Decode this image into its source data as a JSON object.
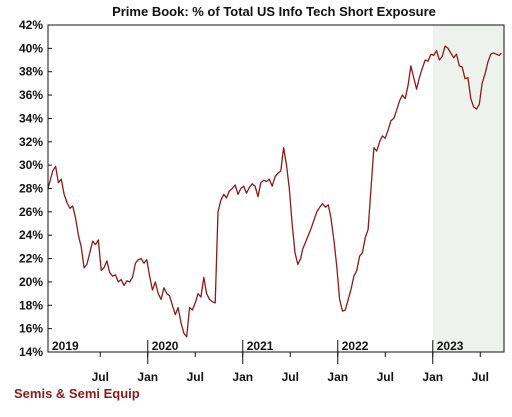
{
  "chart_data": {
    "type": "line",
    "title": "Prime Book: % of Total US Info Tech Short Exposure",
    "xlabel": "",
    "ylabel": "",
    "ylim": [
      14,
      42
    ],
    "y_ticks": [
      "14%",
      "16%",
      "18%",
      "20%",
      "22%",
      "24%",
      "26%",
      "28%",
      "30%",
      "32%",
      "34%",
      "36%",
      "38%",
      "40%",
      "42%"
    ],
    "x_month_ticks": [
      {
        "t": 2019.5,
        "label": "Jul"
      },
      {
        "t": 2020.0,
        "label": "Jan"
      },
      {
        "t": 2020.5,
        "label": "Jul"
      },
      {
        "t": 2021.0,
        "label": "Jan"
      },
      {
        "t": 2021.5,
        "label": "Jul"
      },
      {
        "t": 2022.0,
        "label": "Jan"
      },
      {
        "t": 2022.5,
        "label": "Jul"
      },
      {
        "t": 2023.0,
        "label": "Jan"
      },
      {
        "t": 2023.5,
        "label": "Jul"
      }
    ],
    "year_labels": [
      {
        "t": 2019.0,
        "label": "2019"
      },
      {
        "t": 2020.0,
        "label": "2020"
      },
      {
        "t": 2021.0,
        "label": "2021"
      },
      {
        "t": 2022.0,
        "label": "2022"
      },
      {
        "t": 2023.0,
        "label": "2023"
      }
    ],
    "xrange": [
      2018.95,
      2023.75
    ],
    "shaded_region": [
      2023.0,
      2023.75
    ],
    "grid": false,
    "line_color": "#8b1a1a",
    "shade_color": "#eef2ec",
    "series": [
      {
        "name": "",
        "x": [
          2018.95,
          2019.0,
          2019.03,
          2019.06,
          2019.09,
          2019.12,
          2019.15,
          2019.18,
          2019.21,
          2019.24,
          2019.27,
          2019.3,
          2019.33,
          2019.36,
          2019.39,
          2019.42,
          2019.45,
          2019.48,
          2019.51,
          2019.54,
          2019.57,
          2019.6,
          2019.63,
          2019.66,
          2019.69,
          2019.72,
          2019.75,
          2019.78,
          2019.81,
          2019.84,
          2019.87,
          2019.9,
          2019.93,
          2019.96,
          2019.99,
          2020.02,
          2020.05,
          2020.08,
          2020.11,
          2020.14,
          2020.17,
          2020.2,
          2020.23,
          2020.26,
          2020.29,
          2020.32,
          2020.35,
          2020.38,
          2020.41,
          2020.44,
          2020.47,
          2020.5,
          2020.53,
          2020.56,
          2020.59,
          2020.62,
          2020.65,
          2020.68,
          2020.71,
          2020.74,
          2020.77,
          2020.8,
          2020.83,
          2020.86,
          2020.89,
          2020.92,
          2020.95,
          2020.98,
          2021.01,
          2021.04,
          2021.07,
          2021.1,
          2021.13,
          2021.16,
          2021.19,
          2021.22,
          2021.25,
          2021.28,
          2021.31,
          2021.34,
          2021.37,
          2021.4,
          2021.43,
          2021.46,
          2021.49,
          2021.52,
          2021.55,
          2021.58,
          2021.61,
          2021.63,
          2021.66,
          2021.69,
          2021.72,
          2021.75,
          2021.78,
          2021.81,
          2021.84,
          2021.87,
          2021.9,
          2021.93,
          2021.96,
          2021.99,
          2022.02,
          2022.05,
          2022.08,
          2022.11,
          2022.14,
          2022.17,
          2022.2,
          2022.23,
          2022.26,
          2022.29,
          2022.32,
          2022.35,
          2022.38,
          2022.41,
          2022.44,
          2022.47,
          2022.5,
          2022.53,
          2022.56,
          2022.59,
          2022.62,
          2022.65,
          2022.68,
          2022.71,
          2022.74,
          2022.77,
          2022.8,
          2022.83,
          2022.86,
          2022.89,
          2022.92,
          2022.95,
          2022.98,
          2023.01,
          2023.04,
          2023.07,
          2023.1,
          2023.13,
          2023.16,
          2023.19,
          2023.22,
          2023.25,
          2023.28,
          2023.31,
          2023.34,
          2023.37,
          2023.4,
          2023.43,
          2023.46,
          2023.49,
          2023.52,
          2023.55,
          2023.58,
          2023.61,
          2023.64,
          2023.67,
          2023.7,
          2023.72
        ],
        "values": [
          28.0,
          29.5,
          29.9,
          28.5,
          28.8,
          27.5,
          26.8,
          26.3,
          26.5,
          25.5,
          24.0,
          23.0,
          21.2,
          21.5,
          22.5,
          23.5,
          23.2,
          23.6,
          21.0,
          21.2,
          21.8,
          20.8,
          20.5,
          20.6,
          20.0,
          20.2,
          19.7,
          20.1,
          20.0,
          20.4,
          21.6,
          21.9,
          22.0,
          21.6,
          21.9,
          20.5,
          19.3,
          20.0,
          19.0,
          18.5,
          19.5,
          19.0,
          18.8,
          18.0,
          17.2,
          17.8,
          16.5,
          15.6,
          15.3,
          17.8,
          17.6,
          18.2,
          19.0,
          18.7,
          20.4,
          19.0,
          18.5,
          18.3,
          18.2,
          26.0,
          27.0,
          27.5,
          27.2,
          27.8,
          28.0,
          28.3,
          27.5,
          28.0,
          28.2,
          27.6,
          28.1,
          28.4,
          28.2,
          27.3,
          28.5,
          28.7,
          28.6,
          28.8,
          28.2,
          29.0,
          29.3,
          29.5,
          31.5,
          30.0,
          28.0,
          25.0,
          22.5,
          21.5,
          22.0,
          22.8,
          23.4,
          24.0,
          24.6,
          25.3,
          26.0,
          26.4,
          26.7,
          26.4,
          26.6,
          25.4,
          23.5,
          21.3,
          18.5,
          17.5,
          17.6,
          18.5,
          19.4,
          20.5,
          21.0,
          22.2,
          22.5,
          23.8,
          24.5,
          28.0,
          31.5,
          31.2,
          32.0,
          32.5,
          32.3,
          33.0,
          33.8,
          34.0,
          34.7,
          35.5,
          36.0,
          35.7,
          36.8,
          38.5,
          37.5,
          36.5,
          37.5,
          38.3,
          39.0,
          38.9,
          39.5,
          39.4,
          39.8,
          39.0,
          39.3,
          40.2,
          40.0,
          39.6,
          39.2,
          39.5,
          38.5,
          38.4,
          37.4,
          37.5,
          35.7,
          35.0,
          34.8,
          35.2,
          37.0,
          37.8,
          38.8,
          39.5,
          39.6,
          39.5,
          39.4,
          39.6
        ]
      }
    ]
  },
  "footer": {
    "text": "Semis & Semi Equip",
    "color": "#8b1a1a"
  }
}
